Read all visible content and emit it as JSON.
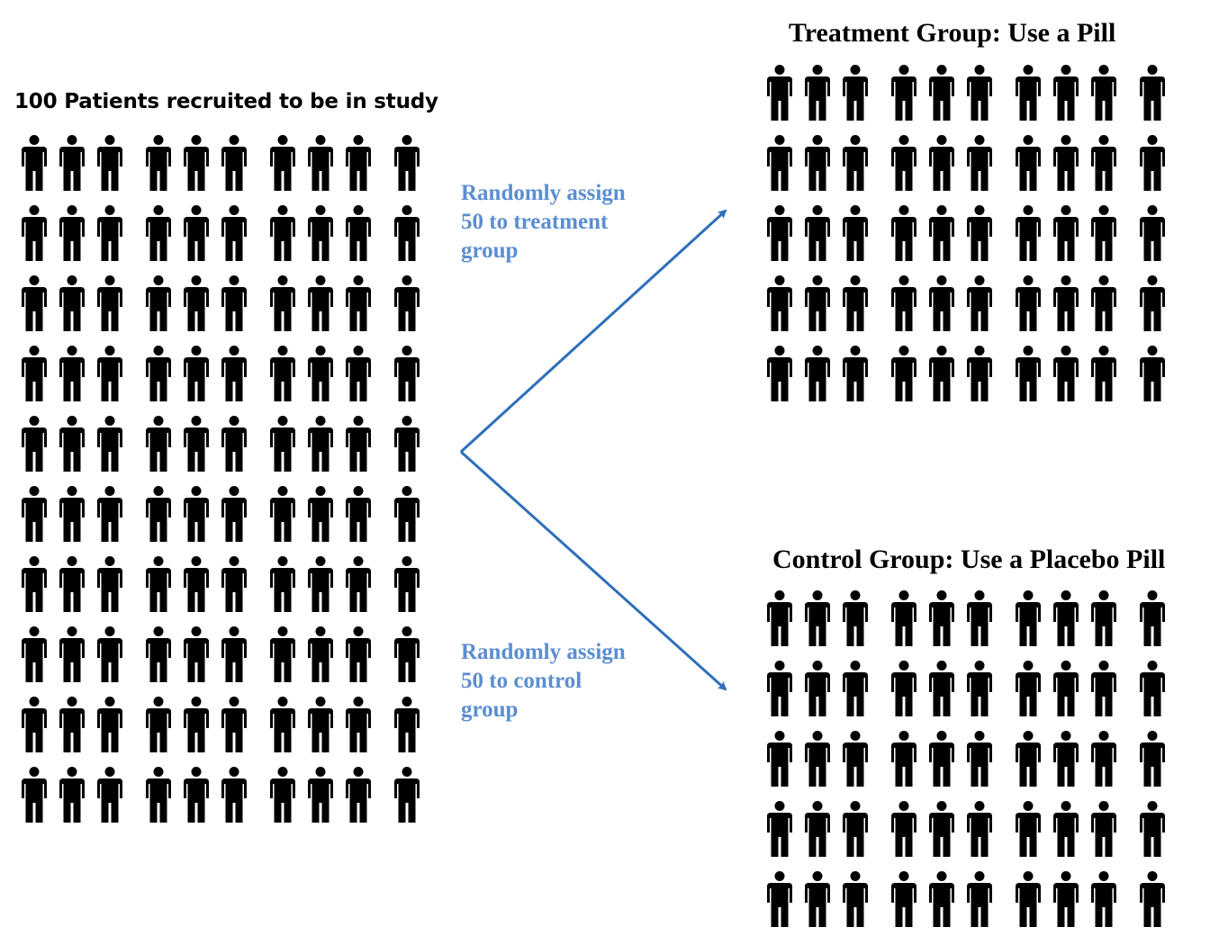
{
  "recruited": {
    "title": "100 Patients recruited to be in study",
    "count": 100,
    "rows": 10,
    "cols": 10
  },
  "treatment": {
    "title": "Treatment Group: Use a Pill",
    "count": 50,
    "rows": 5,
    "cols": 10
  },
  "control": {
    "title": "Control Group: Use a Placebo Pill",
    "count": 50,
    "rows": 5,
    "cols": 10
  },
  "arrows": {
    "treatment_label": [
      "Randomly assign",
      "50 to treatment",
      "group"
    ],
    "control_label": [
      "Randomly assign",
      "50 to control",
      "group"
    ]
  },
  "icons": {
    "person": "person-icon",
    "arrow": "arrow-icon"
  },
  "colors": {
    "figure": "#000000",
    "arrow": "#2e6fba",
    "label": "#5b8ed0"
  }
}
